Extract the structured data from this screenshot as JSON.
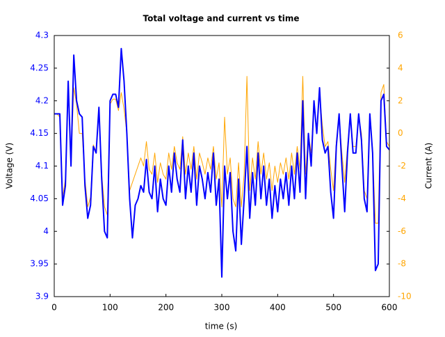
{
  "chart_data": {
    "type": "line",
    "title": "Total voltage and current vs time",
    "x_label": "time (s)",
    "y_label": "Voltage (V)",
    "y2_label": "Current (A)",
    "x": [
      0,
      5,
      10,
      15,
      20,
      25,
      30,
      35,
      40,
      45,
      50,
      55,
      60,
      65,
      70,
      75,
      80,
      85,
      90,
      95,
      100,
      105,
      110,
      115,
      120,
      125,
      130,
      135,
      140,
      145,
      150,
      155,
      160,
      165,
      170,
      175,
      180,
      185,
      190,
      195,
      200,
      205,
      210,
      215,
      220,
      225,
      230,
      235,
      240,
      245,
      250,
      255,
      260,
      265,
      270,
      275,
      280,
      285,
      290,
      295,
      300,
      305,
      310,
      315,
      320,
      325,
      330,
      335,
      340,
      345,
      350,
      355,
      360,
      365,
      370,
      375,
      380,
      385,
      390,
      395,
      400,
      405,
      410,
      415,
      420,
      425,
      430,
      435,
      440,
      445,
      450,
      455,
      460,
      465,
      470,
      475,
      480,
      485,
      490,
      495,
      500,
      505,
      510,
      515,
      520,
      525,
      530,
      535,
      540,
      545,
      550,
      555,
      560,
      565,
      570,
      575,
      580,
      585,
      590,
      595,
      600
    ],
    "series": [
      {
        "name": "Voltage",
        "color": "#0000ff",
        "axis": "y",
        "values": [
          4.18,
          4.18,
          4.18,
          4.04,
          4.07,
          4.23,
          4.1,
          4.27,
          4.2,
          4.18,
          4.175,
          4.07,
          4.02,
          4.04,
          4.13,
          4.12,
          4.19,
          4.08,
          4.0,
          3.99,
          4.2,
          4.21,
          4.21,
          4.19,
          4.28,
          4.23,
          4.15,
          4.05,
          3.99,
          4.04,
          4.05,
          4.07,
          4.06,
          4.11,
          4.06,
          4.05,
          4.1,
          4.03,
          4.08,
          4.05,
          4.04,
          4.1,
          4.06,
          4.12,
          4.08,
          4.06,
          4.14,
          4.05,
          4.1,
          4.06,
          4.12,
          4.04,
          4.1,
          4.08,
          4.05,
          4.09,
          4.06,
          4.12,
          4.04,
          4.08,
          3.93,
          4.1,
          4.05,
          4.09,
          4.0,
          3.97,
          4.08,
          3.98,
          4.05,
          4.13,
          4.02,
          4.09,
          4.04,
          4.12,
          4.05,
          4.1,
          4.04,
          4.08,
          4.02,
          4.07,
          4.03,
          4.08,
          4.05,
          4.09,
          4.04,
          4.1,
          4.05,
          4.12,
          4.06,
          4.2,
          4.05,
          4.15,
          4.1,
          4.2,
          4.15,
          4.22,
          4.14,
          4.12,
          4.13,
          4.06,
          4.02,
          4.13,
          4.18,
          4.1,
          4.03,
          4.12,
          4.18,
          4.12,
          4.12,
          4.18,
          4.14,
          4.05,
          4.03,
          4.18,
          4.12,
          3.94,
          3.95,
          4.2,
          4.21,
          4.13,
          4.125
        ]
      },
      {
        "name": "Current",
        "color": "#ffa500",
        "axis": "y2",
        "values": [
          1.2,
          1.2,
          1.0,
          -3.9,
          -2.8,
          2.8,
          -1.8,
          2.8,
          1.8,
          0,
          0,
          -2.8,
          -4.5,
          -3.9,
          -0.7,
          -1.1,
          1.4,
          -2.5,
          -4.5,
          -5.0,
          1.8,
          2.1,
          2.1,
          1.4,
          2.5,
          1.5,
          0,
          -3.5,
          -3,
          -2.5,
          -2,
          -1.5,
          -2,
          -0.5,
          -2.2,
          -2.5,
          -1.2,
          -3,
          -1.8,
          -2.5,
          -2.8,
          -1.2,
          -2.2,
          -0.8,
          -1.8,
          -2.2,
          -0.2,
          -2.5,
          -1.2,
          -2.2,
          -0.8,
          -2.8,
          -1.2,
          -1.8,
          -2.5,
          -1.5,
          -2.2,
          -0.8,
          -2.8,
          -1.8,
          -4.5,
          1.0,
          -2.5,
          -1.5,
          -4,
          -4.5,
          -1.8,
          -4.5,
          -2.5,
          3.5,
          -3.5,
          -1.5,
          -2.8,
          -0.5,
          -2.5,
          -1.2,
          -2.8,
          -1.8,
          -3.5,
          -2,
          -3,
          -1.8,
          -2.5,
          -1.5,
          -2.8,
          -1.2,
          -2.5,
          -0.8,
          -2.2,
          3.5,
          -2.5,
          0,
          -1.2,
          2,
          0.2,
          2.5,
          0.5,
          -0.8,
          -0.5,
          -2.2,
          -3.5,
          -0.5,
          1.0,
          -1.2,
          -3,
          -0.8,
          1,
          -0.8,
          -0.8,
          1,
          0,
          -3.5,
          -4,
          1,
          -1,
          -5.5,
          -5.5,
          2.5,
          3,
          -0.5,
          -0.8
        ]
      }
    ],
    "xlim": [
      0,
      600
    ],
    "xticks": [
      0,
      100,
      200,
      300,
      400,
      500,
      600
    ],
    "ylim": [
      3.9,
      4.3
    ],
    "yticks": [
      3.9,
      3.95,
      4,
      4.05,
      4.1,
      4.15,
      4.2,
      4.25,
      4.3
    ],
    "y2lim": [
      -10,
      6
    ],
    "y2ticks": [
      -10,
      -8,
      -6,
      -4,
      -2,
      0,
      2,
      4,
      6
    ],
    "grid": false
  }
}
